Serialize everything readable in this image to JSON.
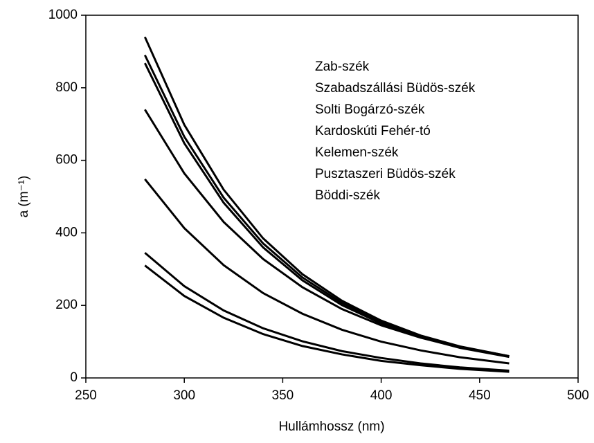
{
  "chart_data": {
    "type": "line",
    "xlabel": "Hullámhossz (nm)",
    "ylabel": "a  (m⁻¹)",
    "x": [
      280,
      300,
      320,
      340,
      360,
      380,
      400,
      420,
      440,
      465
    ],
    "series": [
      {
        "name": "Zab-szék",
        "color": "#000000",
        "values": [
          940,
          698,
          519,
          385,
          286,
          213,
          158,
          117,
          87,
          60
        ]
      },
      {
        "name": "Szabadszállási Büdös-szék",
        "color": "#000000",
        "values": [
          890,
          665,
          497,
          371,
          277,
          207,
          155,
          116,
          86,
          60
        ]
      },
      {
        "name": "Solti Bogárzó-szék",
        "color": "#000000",
        "values": [
          868,
          647,
          483,
          360,
          269,
          201,
          150,
          112,
          83,
          58
        ]
      },
      {
        "name": "Kardoskúti Fehér-tó",
        "color": "#000000",
        "values": [
          740,
          564,
          430,
          328,
          250,
          190,
          145,
          111,
          84,
          60
        ]
      },
      {
        "name": "Kelemen-szék",
        "color": "#000000",
        "values": [
          548,
          413,
          311,
          234,
          177,
          133,
          100,
          76,
          57,
          40
        ]
      },
      {
        "name": "Pusztaszeri Büdös-szék",
        "color": "#000000",
        "values": [
          345,
          253,
          186,
          137,
          101,
          74,
          55,
          40,
          29,
          20
        ]
      },
      {
        "name": "Böddi-szék",
        "color": "#000000",
        "values": [
          310,
          226,
          166,
          121,
          88,
          65,
          47,
          35,
          25,
          17
        ]
      }
    ],
    "xlim": [
      250,
      500
    ],
    "xticks": [
      250,
      300,
      350,
      400,
      450,
      500
    ],
    "ylim": [
      0,
      1000
    ],
    "yticks": [
      0,
      200,
      400,
      600,
      800,
      1000
    ],
    "grid": false,
    "legend": "upper right"
  }
}
